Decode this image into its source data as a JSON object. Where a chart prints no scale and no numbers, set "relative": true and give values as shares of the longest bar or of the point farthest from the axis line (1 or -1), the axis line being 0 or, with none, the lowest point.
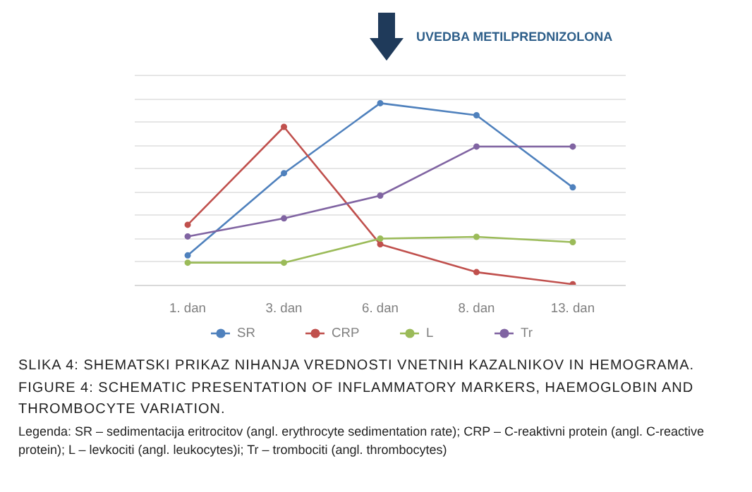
{
  "chart_data": {
    "type": "line",
    "title": "SLIKA 4: SHEMATSKI PRIKAZ NIHANJA VREDNOSTI VNETNIH KAZALNIKOV IN HEMOGRAMA.",
    "subtitle": "FIGURE 4: SCHEMATIC PRESENTATION OF INFLAMMATORY MARKERS, HAEMOGLOBIN AND THROMBOCYTE VARIATION.",
    "relative": true,
    "categories": [
      "1. dan",
      "3. dan",
      "6. dan",
      "8. dan",
      "13. dan"
    ],
    "series": [
      {
        "name": "SR",
        "color": "#4f81bd",
        "values": [
          0.165,
          0.616,
          1,
          0.934,
          0.538
        ]
      },
      {
        "name": "CRP",
        "color": "#c0504d",
        "values": [
          0.333,
          0.87,
          0.226,
          0.073,
          0.007
        ]
      },
      {
        "name": "L",
        "color": "#9bbb59",
        "values": [
          0.125,
          0.125,
          0.257,
          0.267,
          0.238
        ]
      },
      {
        "name": "Tr",
        "color": "#8064a2",
        "values": [
          0.269,
          0.368,
          0.493,
          0.762,
          0.762
        ]
      }
    ],
    "annotations": [
      "UVEDBA METILPREDNIZOLONA",
      "Legenda: SR – sedimentacija eritrocitov (angl. erythrocyte sedimentation rate); CRP – C-reaktivni protein (angl. C-reactive protein); L – levkociti (angl. leukocytes)i; Tr – trombociti (angl. thrombocytes)"
    ],
    "grid": "y",
    "legend": "bottom",
    "marker": "circle",
    "line_style": "solid"
  }
}
